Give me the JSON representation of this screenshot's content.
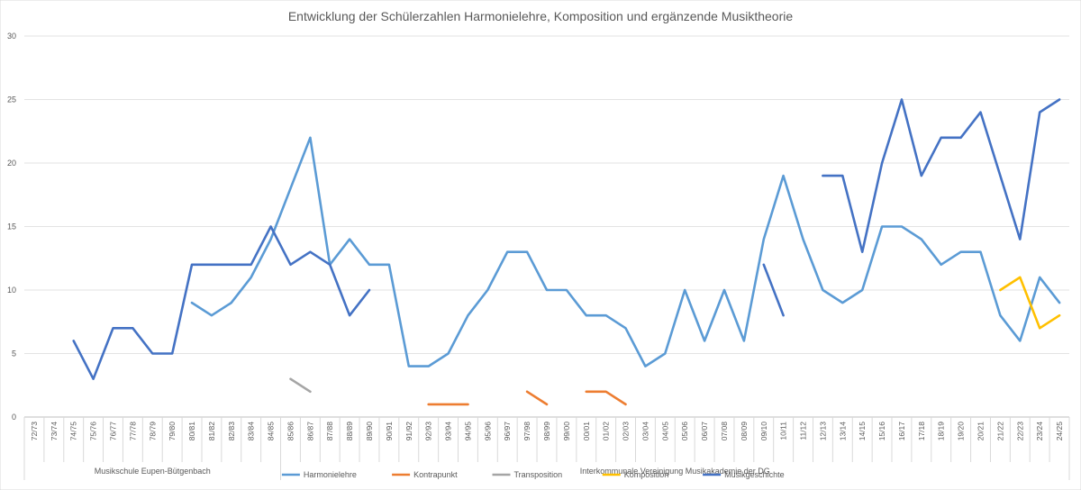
{
  "chart_data": {
    "type": "line",
    "title": "Entwicklung der Schülerzahlen Harmonielehre, Komposition und ergänzende Musiktheorie",
    "xlabel": "",
    "ylabel": "",
    "ylim": [
      0,
      30
    ],
    "yticks": [
      0,
      5,
      10,
      15,
      20,
      25,
      30
    ],
    "grid": "horizontal",
    "legend_position": "bottom",
    "categories": [
      "72/73",
      "73/74",
      "74/75",
      "75/76",
      "76/77",
      "77/78",
      "78/79",
      "79/80",
      "80/81",
      "81/82",
      "82/83",
      "83/84",
      "84/85",
      "85/86",
      "86/87",
      "87/88",
      "88/89",
      "89/90",
      "90/91",
      "91/92",
      "92/93",
      "93/94",
      "94/95",
      "95/96",
      "96/97",
      "97/98",
      "98/99",
      "99/00",
      "00/01",
      "01/02",
      "02/03",
      "03/04",
      "04/05",
      "05/06",
      "06/07",
      "07/08",
      "08/09",
      "09/10",
      "10/11",
      "11/12",
      "12/13",
      "13/14",
      "14/15",
      "15/16",
      "16/17",
      "17/18",
      "18/19",
      "19/20",
      "20/21",
      "21/22",
      "22/23",
      "23/24",
      "24/25"
    ],
    "category_groups": [
      {
        "label": "Musikschule Eupen-Bütgenbach",
        "start": "72/73",
        "end": "84/85"
      },
      {
        "label": "Interkommunale Vereinigung Musikakademie der DG",
        "start": "85/86",
        "end": "24/25"
      }
    ],
    "series": [
      {
        "name": "Harmonielehre",
        "color": "#5b9bd5",
        "values": [
          null,
          null,
          null,
          null,
          null,
          null,
          null,
          null,
          9,
          8,
          9,
          11,
          14,
          18,
          22,
          12,
          14,
          12,
          12,
          4,
          4,
          5,
          8,
          10,
          13,
          13,
          10,
          10,
          8,
          8,
          7,
          4,
          5,
          10,
          6,
          10,
          6,
          14,
          19,
          14,
          10,
          9,
          10,
          15,
          15,
          14,
          12,
          13,
          13,
          8,
          6,
          11,
          9
        ]
      },
      {
        "name": "Kontrapunkt",
        "color": "#ed7d31",
        "values": [
          null,
          null,
          null,
          null,
          null,
          null,
          null,
          null,
          null,
          null,
          null,
          null,
          null,
          null,
          null,
          null,
          null,
          null,
          null,
          null,
          1,
          1,
          1,
          null,
          null,
          2,
          1,
          null,
          2,
          2,
          1,
          null,
          null,
          null,
          null,
          null,
          null,
          null,
          null,
          null,
          null,
          null,
          null,
          null,
          null,
          null,
          null,
          null,
          null,
          null,
          null,
          null,
          null
        ]
      },
      {
        "name": "Transposition",
        "color": "#a5a5a5",
        "values": [
          null,
          null,
          null,
          null,
          null,
          null,
          null,
          null,
          null,
          null,
          null,
          null,
          null,
          3,
          2,
          null,
          null,
          null,
          null,
          null,
          null,
          null,
          null,
          null,
          null,
          null,
          null,
          null,
          null,
          null,
          null,
          null,
          null,
          null,
          null,
          null,
          null,
          null,
          null,
          null,
          null,
          null,
          null,
          null,
          null,
          null,
          null,
          null,
          null,
          null,
          null,
          null,
          null
        ]
      },
      {
        "name": "Komposition",
        "color": "#ffc000",
        "values": [
          null,
          null,
          null,
          null,
          null,
          null,
          null,
          null,
          null,
          null,
          null,
          null,
          null,
          null,
          null,
          null,
          null,
          null,
          null,
          null,
          null,
          null,
          null,
          null,
          null,
          null,
          null,
          null,
          null,
          null,
          null,
          null,
          null,
          null,
          null,
          null,
          null,
          null,
          null,
          null,
          null,
          null,
          null,
          null,
          null,
          null,
          null,
          null,
          null,
          10,
          11,
          7,
          8
        ]
      },
      {
        "name": "Musikgeschichte",
        "color": "#4472c4",
        "values": [
          null,
          null,
          6,
          3,
          7,
          7,
          5,
          5,
          12,
          12,
          12,
          12,
          15,
          12,
          13,
          12,
          8,
          10,
          null,
          null,
          null,
          null,
          null,
          null,
          null,
          null,
          null,
          null,
          null,
          null,
          null,
          null,
          null,
          null,
          null,
          null,
          null,
          12,
          8,
          null,
          19,
          19,
          13,
          20,
          25,
          19,
          22,
          22,
          24,
          19,
          14,
          24,
          25
        ]
      }
    ]
  }
}
